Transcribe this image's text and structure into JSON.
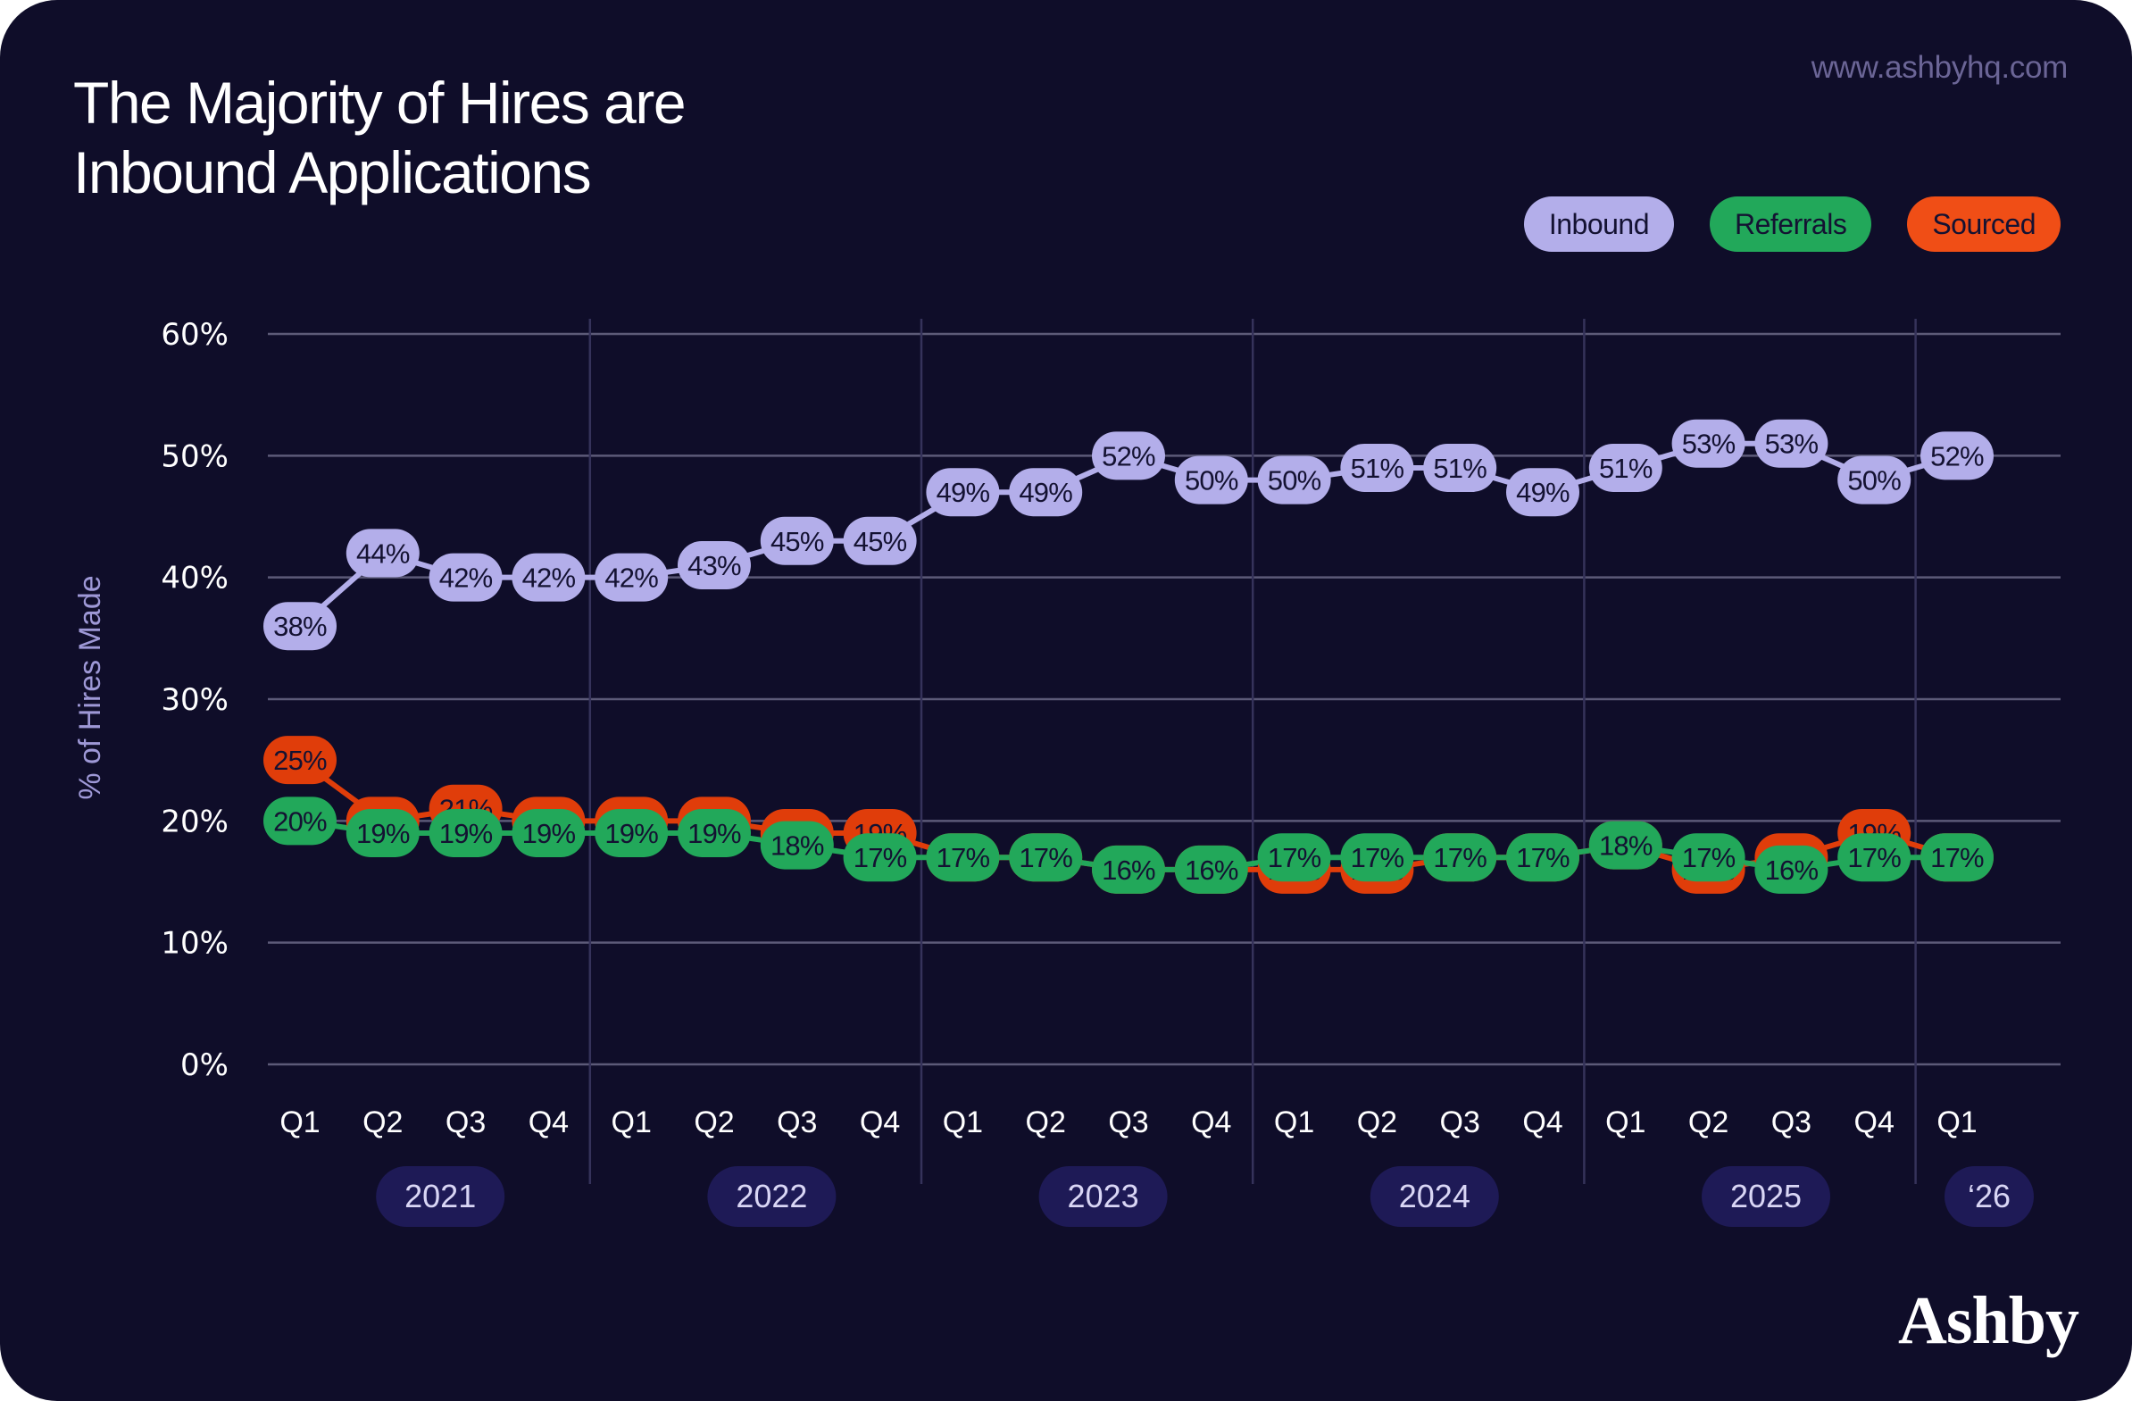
{
  "header": {
    "title_line1": "The Majority of Hires are",
    "title_line2": "Inbound Applications",
    "url": "www.ashbyhq.com",
    "logo": "Ashby"
  },
  "colors": {
    "background": "#0f0d29",
    "inbound": "#b3aeea",
    "referrals": "#22a85a",
    "sourced": "#e03d0a",
    "sourced_legend": "#f04e16",
    "grid": "#5c5a78",
    "year_pill": "#1e1a56"
  },
  "chart_data": {
    "type": "line",
    "title": "The Majority of Hires are Inbound Applications",
    "xlabel": "",
    "ylabel": "% of Hires Made",
    "ylim": [
      0,
      60
    ],
    "yticks": [
      "0%",
      "10%",
      "20%",
      "30%",
      "40%",
      "50%",
      "60%"
    ],
    "ytick_values": [
      0,
      10,
      20,
      30,
      40,
      50,
      60
    ],
    "grid": true,
    "legend_position": "top-right",
    "x": [
      "Q1",
      "Q2",
      "Q3",
      "Q4",
      "Q1",
      "Q2",
      "Q3",
      "Q4",
      "Q1",
      "Q2",
      "Q3",
      "Q4",
      "Q1",
      "Q2",
      "Q3",
      "Q4",
      "Q1",
      "Q2",
      "Q3",
      "Q4",
      "Q1"
    ],
    "years": [
      {
        "label": "2021",
        "start": 0,
        "end": 3
      },
      {
        "label": "2022",
        "start": 4,
        "end": 7
      },
      {
        "label": "2023",
        "start": 8,
        "end": 11
      },
      {
        "label": "2024",
        "start": 12,
        "end": 15
      },
      {
        "label": "2025",
        "start": 16,
        "end": 19
      },
      {
        "label": "‘26",
        "start": 20,
        "end": 20
      }
    ],
    "series": [
      {
        "name": "Sourced",
        "key": "sourced",
        "values": [
          25,
          20,
          21,
          20,
          20,
          20,
          19,
          19,
          17,
          17,
          16,
          16,
          16,
          16,
          17,
          17,
          18,
          16,
          17,
          19,
          17
        ]
      },
      {
        "name": "Referrals",
        "key": "referrals",
        "values": [
          20,
          19,
          19,
          19,
          19,
          19,
          18,
          17,
          17,
          17,
          16,
          16,
          17,
          17,
          17,
          17,
          18,
          17,
          16,
          17,
          17
        ]
      },
      {
        "name": "Inbound",
        "key": "inbound",
        "values": [
          38,
          44,
          42,
          42,
          42,
          43,
          45,
          45,
          49,
          49,
          52,
          50,
          50,
          51,
          51,
          49,
          51,
          53,
          53,
          50,
          52
        ]
      }
    ]
  },
  "legend": [
    {
      "label": "Inbound",
      "key": "inbound"
    },
    {
      "label": "Referrals",
      "key": "referrals"
    },
    {
      "label": "Sourced",
      "key": "sourced"
    }
  ]
}
